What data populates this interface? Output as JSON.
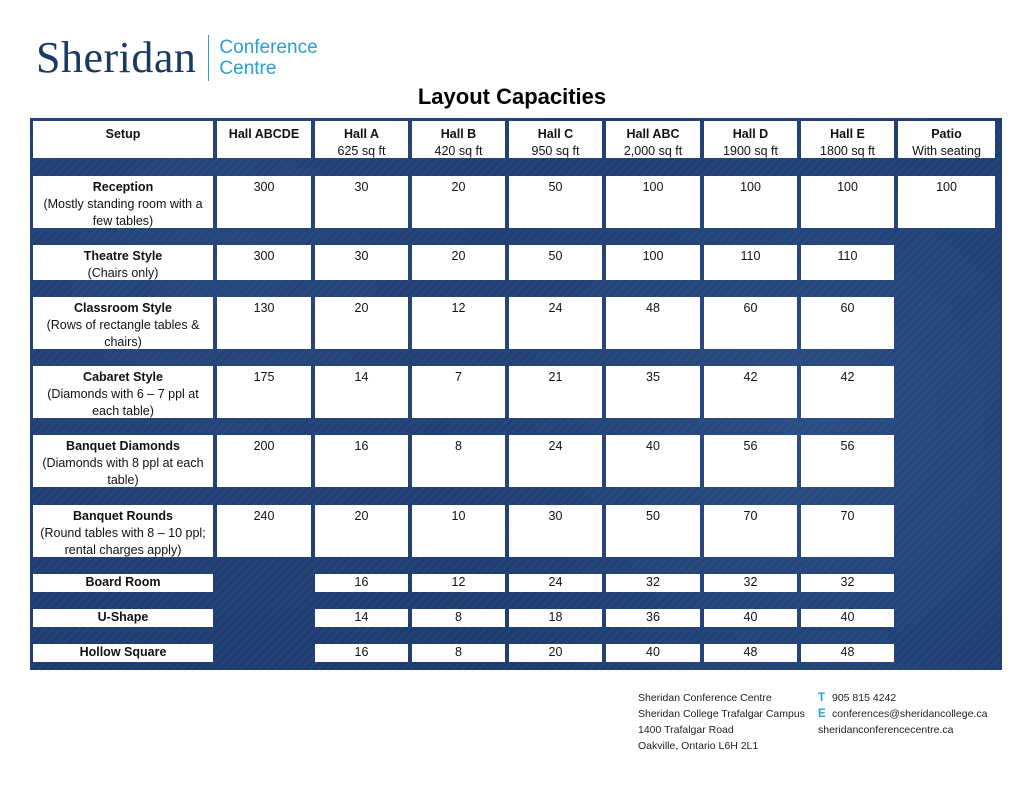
{
  "logo": {
    "name": "Sheridan",
    "line1": "Conference",
    "line2": "Centre"
  },
  "title": "Layout Capacities",
  "columns": [
    {
      "name": "Setup",
      "sub": ""
    },
    {
      "name": "Hall ABCDE",
      "sub": ""
    },
    {
      "name": "Hall A",
      "sub": "625 sq ft"
    },
    {
      "name": "Hall B",
      "sub": "420 sq ft"
    },
    {
      "name": "Hall C",
      "sub": "950 sq ft"
    },
    {
      "name": "Hall ABC",
      "sub": "2,000 sq ft"
    },
    {
      "name": "Hall D",
      "sub": "1900 sq ft"
    },
    {
      "name": "Hall E",
      "sub": "1800 sq ft"
    },
    {
      "name": "Patio",
      "sub": "With seating"
    }
  ],
  "rows": [
    {
      "label": "Reception",
      "desc_lines": [
        "(Mostly standing room with a",
        "few tables)"
      ],
      "values": [
        "300",
        "30",
        "20",
        "50",
        "100",
        "100",
        "100",
        "100"
      ]
    },
    {
      "label": "Theatre Style",
      "desc_lines": [
        "(Chairs only)"
      ],
      "values": [
        "300",
        "30",
        "20",
        "50",
        "100",
        "110",
        "110",
        null
      ]
    },
    {
      "label": "Classroom Style",
      "desc_lines": [
        "(Rows of rectangle tables &",
        "chairs)"
      ],
      "values": [
        "130",
        "20",
        "12",
        "24",
        "48",
        "60",
        "60",
        null
      ]
    },
    {
      "label": "Cabaret Style",
      "desc_lines": [
        "(Diamonds with 6 – 7 ppl at",
        "each table)"
      ],
      "values": [
        "175",
        "14",
        "7",
        "21",
        "35",
        "42",
        "42",
        null
      ]
    },
    {
      "label": "Banquet Diamonds",
      "desc_lines": [
        "(Diamonds with 8 ppl at each",
        "table)"
      ],
      "values": [
        "200",
        "16",
        "8",
        "24",
        "40",
        "56",
        "56",
        null
      ]
    },
    {
      "label": "Banquet Rounds",
      "desc_lines": [
        "(Round tables with 8 – 10 ppl;",
        "rental charges apply)"
      ],
      "values": [
        "240",
        "20",
        "10",
        "30",
        "50",
        "70",
        "70",
        null
      ]
    },
    {
      "label": "Board Room",
      "desc_lines": [],
      "values": [
        null,
        "16",
        "12",
        "24",
        "32",
        "32",
        "32",
        null
      ]
    },
    {
      "label": "U-Shape",
      "desc_lines": [],
      "values": [
        null,
        "14",
        "8",
        "18",
        "36",
        "40",
        "40",
        null
      ]
    },
    {
      "label": "Hollow Square",
      "desc_lines": [],
      "values": [
        null,
        "16",
        "8",
        "20",
        "40",
        "48",
        "48",
        null
      ]
    }
  ],
  "footer": {
    "address": [
      "Sheridan Conference Centre",
      "Sheridan College Trafalgar Campus",
      "1400 Trafalgar Road",
      "Oakville, Ontario L6H 2L1"
    ],
    "phone_letter": "T",
    "phone": "905 815 4242",
    "email_letter": "E",
    "email": "conferences@sheridancollege.ca",
    "website": "sheridanconferencecentre.ca"
  },
  "colors": {
    "brand_navy": "#1b3a63",
    "brand_cyan": "#2a9fd0",
    "board_blue": "#1f3d70"
  }
}
